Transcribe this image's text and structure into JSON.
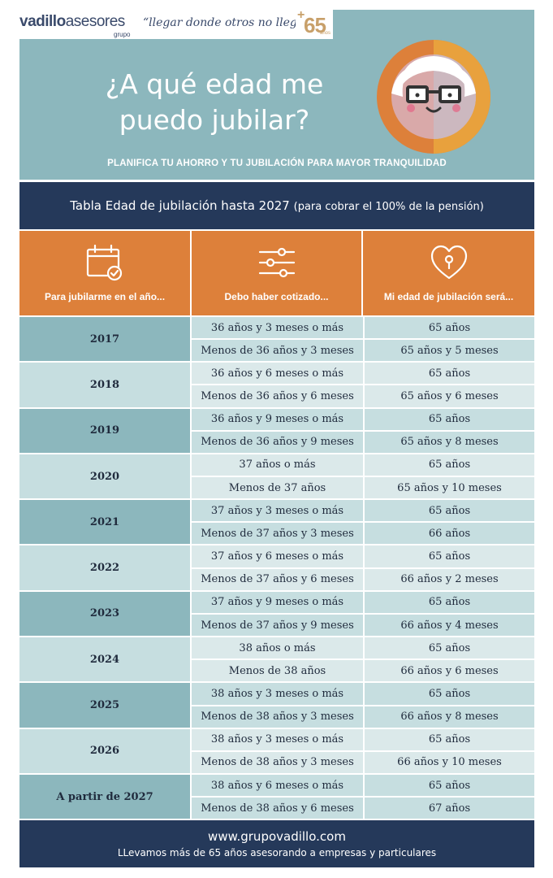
{
  "brand": {
    "logo_part1": "vadillo",
    "logo_part2": "asesores",
    "logo_sub": "grupo",
    "tagline": "“llegar donde otros no llegan”",
    "badge_plus": "+",
    "badge_number": "65",
    "badge_years": "años"
  },
  "hero": {
    "title_line1": "¿A qué edad me",
    "title_line2": "puedo jubilar?",
    "subtitle": "PLANIFICA TU AHORRO Y TU JUBILACIÓN PARA MAYOR TRANQUILIDAD",
    "colors": {
      "background": "#8cb7bd",
      "ring": "#e8a13d",
      "ring_dark": "#dd803a"
    }
  },
  "table_title": {
    "main": "Tabla Edad de jubilación hasta 2027",
    "note": "(para cobrar el 100% de la pensión)"
  },
  "table": {
    "headers": [
      {
        "label": "Para jubilarme en el año...",
        "icon": "calendar-check-icon"
      },
      {
        "label": "Debo haber cotizado...",
        "icon": "sliders-icon"
      },
      {
        "label": "Mi edad de jubilación será...",
        "icon": "heart-lock-icon"
      }
    ],
    "rows": [
      {
        "year": "2017",
        "sub": [
          {
            "contrib": "36 años y 3 meses o más",
            "age": "65 años"
          },
          {
            "contrib": "Menos de 36 años y 3 meses",
            "age": "65 años y 5 meses"
          }
        ]
      },
      {
        "year": "2018",
        "sub": [
          {
            "contrib": "36 años y 6 meses o más",
            "age": "65 años"
          },
          {
            "contrib": "Menos de 36 años y 6 meses",
            "age": "65 años y 6 meses"
          }
        ]
      },
      {
        "year": "2019",
        "sub": [
          {
            "contrib": "36 años y 9 meses o más",
            "age": "65 años"
          },
          {
            "contrib": "Menos de 36 años y 9 meses",
            "age": "65 años y 8 meses"
          }
        ]
      },
      {
        "year": "2020",
        "sub": [
          {
            "contrib": "37 años o más",
            "age": "65 años"
          },
          {
            "contrib": "Menos de 37 años",
            "age": "65 años y 10 meses"
          }
        ]
      },
      {
        "year": "2021",
        "sub": [
          {
            "contrib": "37 años y 3 meses o más",
            "age": "65 años"
          },
          {
            "contrib": "Menos de 37 años y 3 meses",
            "age": "66 años"
          }
        ]
      },
      {
        "year": "2022",
        "sub": [
          {
            "contrib": "37 años y 6 meses o más",
            "age": "65 años"
          },
          {
            "contrib": "Menos de 37 años y 6 meses",
            "age": "66 años y 2 meses"
          }
        ]
      },
      {
        "year": "2023",
        "sub": [
          {
            "contrib": "37 años y 9 meses o más",
            "age": "65 años"
          },
          {
            "contrib": "Menos de 37 años y 9 meses",
            "age": "66 años y 4 meses"
          }
        ]
      },
      {
        "year": "2024",
        "sub": [
          {
            "contrib": "38 años o más",
            "age": "65 años"
          },
          {
            "contrib": "Menos de 38 años",
            "age": "66 años y 6 meses"
          }
        ]
      },
      {
        "year": "2025",
        "sub": [
          {
            "contrib": "38 años y 3 meses o más",
            "age": "65 años"
          },
          {
            "contrib": "Menos de 38 años y 3 meses",
            "age": "66 años y 8 meses"
          }
        ]
      },
      {
        "year": "2026",
        "sub": [
          {
            "contrib": "38 años y 3 meses o más",
            "age": "65 años"
          },
          {
            "contrib": "Menos de 38 años y 3 meses",
            "age": "66 años y 10 meses"
          }
        ]
      },
      {
        "year": "A partir de 2027",
        "sub": [
          {
            "contrib": "38 años y 6 meses o más",
            "age": "65 años"
          },
          {
            "contrib": "Menos de 38 años y 6 meses",
            "age": "67 años"
          }
        ]
      }
    ],
    "colors": {
      "header": "#dd803a",
      "dark_row": "#8cb7bd",
      "light_row": "#c6dee0",
      "navy": "#25395a"
    }
  },
  "footer": {
    "url": "www.grupovadillo.com",
    "slogan": "LLevamos más de 65 años asesorando a empresas y particulares"
  }
}
